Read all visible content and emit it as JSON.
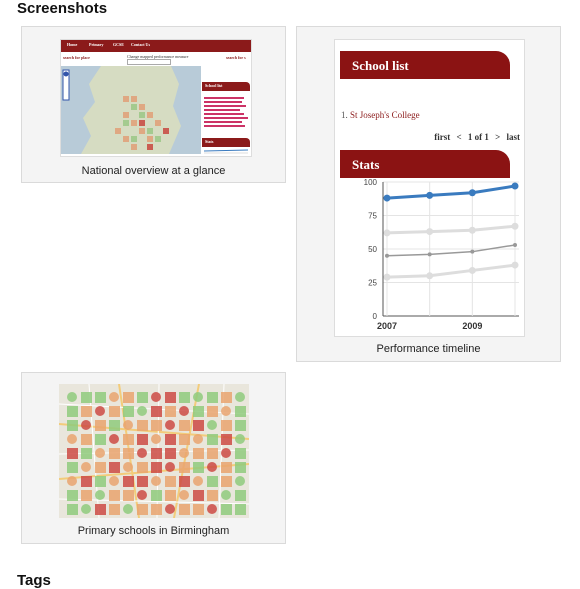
{
  "headings": {
    "screenshots": "Screenshots",
    "tags": "Tags"
  },
  "cards": [
    {
      "caption": "National overview at a glance"
    },
    {
      "caption": "Performance timeline"
    },
    {
      "caption": "Primary schools in Birmingham"
    }
  ],
  "mini_site": {
    "nav": [
      "Home",
      "Primary",
      "GCSE",
      "Contact Us"
    ],
    "search_left": "search for place",
    "change_label": "Change mapped performance measure",
    "search_right": "search for s",
    "panel_school_list": "School list",
    "panel_stats": "Stats"
  },
  "school_list": {
    "title": "School list",
    "item_number": "1.",
    "item_name": "St Joseph's College",
    "pager": {
      "first": "first",
      "prev": "<",
      "info": "1 of 1",
      "next": ">",
      "last": "last"
    },
    "stats_title": "Stats"
  },
  "colors": {
    "accent": "#8b1313",
    "series_main": "#3a7bbf",
    "series_grey": "#999999",
    "series_light": "#dddddd"
  },
  "chart_data": {
    "type": "line",
    "x": [
      2007,
      2008,
      2009,
      2010
    ],
    "xticks": [
      "2007",
      "2009"
    ],
    "yticks": [
      "0",
      "25",
      "50",
      "75",
      "100"
    ],
    "ylim": [
      0,
      100
    ],
    "series": [
      {
        "values": [
          88,
          90,
          92,
          97
        ],
        "color": "#3a7bbf"
      },
      {
        "values": [
          62,
          63,
          64,
          67
        ],
        "color": "#dddddd"
      },
      {
        "values": [
          45,
          46,
          48,
          53
        ],
        "color": "#999999"
      },
      {
        "values": [
          29,
          30,
          34,
          38
        ],
        "color": "#dddddd"
      }
    ]
  }
}
